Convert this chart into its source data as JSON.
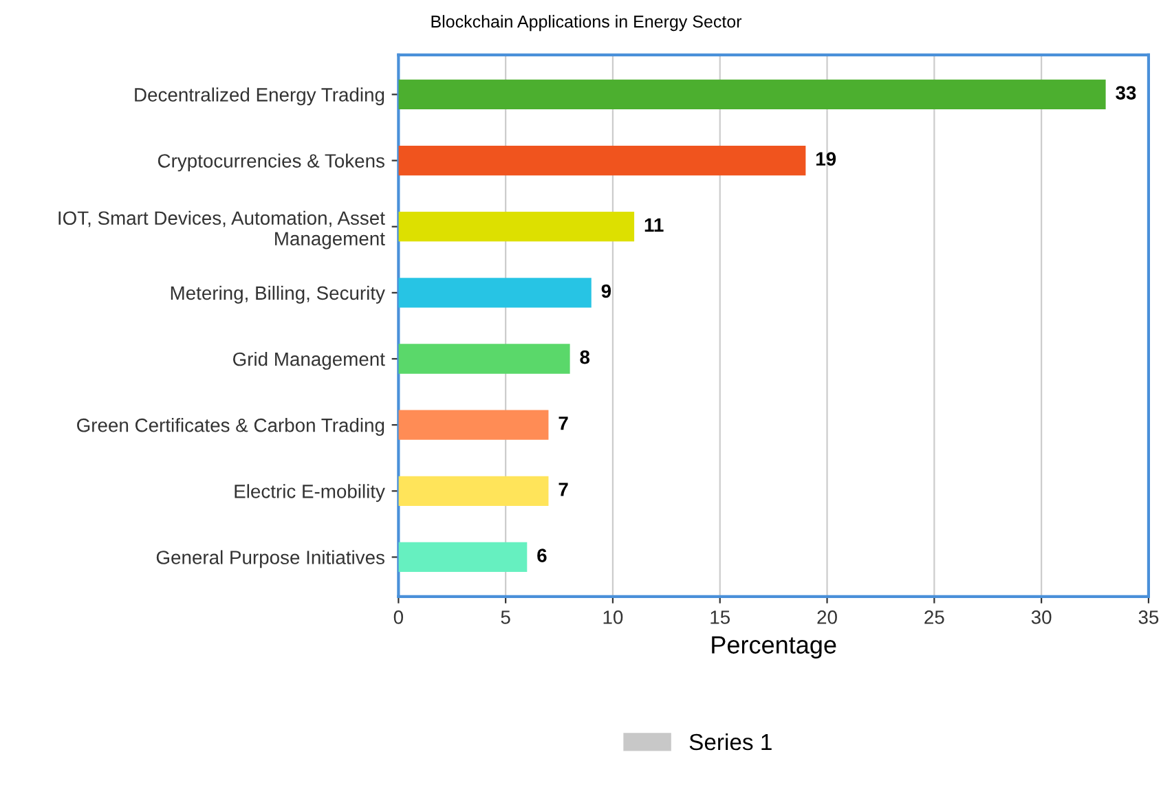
{
  "chart_data": {
    "type": "bar",
    "orientation": "horizontal",
    "title": "Blockchain Applications in Energy Sector",
    "xlabel": "Percentage",
    "categories": [
      "Decentralized Energy Trading",
      "Cryptocurrencies & Tokens",
      "IOT, Smart Devices, Automation, Asset Management",
      "Metering, Billing, Security",
      "Grid Management",
      "Green Certificates & Carbon Trading",
      "Electric E-mobility",
      "General Purpose Initiatives"
    ],
    "series": [
      {
        "name": "Series 1",
        "color": "#c8c8c8",
        "colors": [
          "#4caf2f",
          "#f0541e",
          "#dde000",
          "#27c4e4",
          "#5ad86a",
          "#ff8c55",
          "#ffe45a",
          "#66f0c0"
        ],
        "values": [
          33,
          19,
          11,
          9,
          8,
          7,
          7,
          6
        ]
      }
    ],
    "xlim": [
      0,
      35
    ],
    "xticks": [
      0,
      5,
      10,
      15,
      20,
      25,
      30,
      35
    ],
    "grid": "x",
    "data_labels": true,
    "legend": "bottom"
  }
}
